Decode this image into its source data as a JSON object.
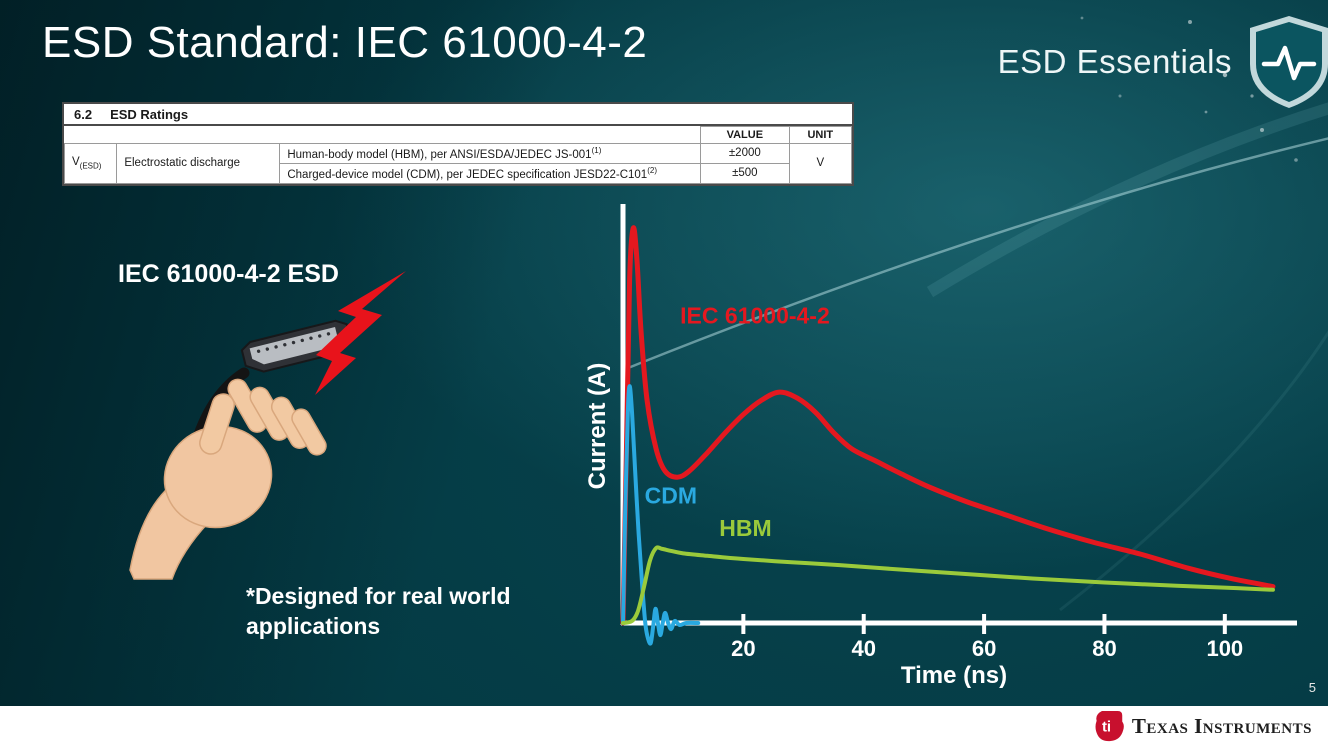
{
  "slide": {
    "title": "ESD Standard: IEC 61000-4-2",
    "brand": "ESD Essentials",
    "page_number": "5",
    "footer_logo_text": "Texas Instruments",
    "footer_logo_mark": "ti"
  },
  "table": {
    "section_number": "6.2",
    "section_title": "ESD Ratings",
    "headers": {
      "value": "VALUE",
      "unit": "UNIT"
    },
    "param": {
      "symbol": "V",
      "subscript": "(ESD)",
      "description": "Electrostatic discharge"
    },
    "rows": [
      {
        "description": "Human-body model (HBM), per ANSI/ESDA/JEDEC JS-001",
        "superscript": "(1)",
        "value": "±2000"
      },
      {
        "description": "Charged-device model (CDM), per JEDEC specification JESD22-C101",
        "superscript": "(2)",
        "value": "±500"
      }
    ],
    "unit": "V"
  },
  "illustration": {
    "label": "IEC 61000-4-2 ESD",
    "note": "*Designed for real world applications"
  },
  "chart_data": {
    "type": "line",
    "title": "",
    "xlabel": "Time (ns)",
    "ylabel": "Current (A)",
    "xlim": [
      0,
      110
    ],
    "ylim": [
      0,
      1
    ],
    "x_ticks": [
      20,
      40,
      60,
      80,
      100
    ],
    "grid": false,
    "legend_position": "inline-labels",
    "series": [
      {
        "name": "IEC 61000-4-2",
        "color": "#e4181f",
        "stroke_width": 5,
        "label": {
          "t": 9.5,
          "amp": 0.74
        },
        "points": [
          [
            0,
            0
          ],
          [
            0.6,
            0.45
          ],
          [
            1.1,
            0.85
          ],
          [
            1.7,
            0.975
          ],
          [
            2.3,
            0.9
          ],
          [
            3,
            0.72
          ],
          [
            4,
            0.55
          ],
          [
            5.5,
            0.43
          ],
          [
            7,
            0.375
          ],
          [
            9,
            0.36
          ],
          [
            11,
            0.375
          ],
          [
            14,
            0.42
          ],
          [
            17,
            0.47
          ],
          [
            20,
            0.515
          ],
          [
            23,
            0.55
          ],
          [
            26,
            0.57
          ],
          [
            29,
            0.555
          ],
          [
            32,
            0.52
          ],
          [
            35,
            0.47
          ],
          [
            38,
            0.43
          ],
          [
            42,
            0.4
          ],
          [
            46,
            0.37
          ],
          [
            51,
            0.335
          ],
          [
            57,
            0.3
          ],
          [
            63,
            0.27
          ],
          [
            70,
            0.235
          ],
          [
            78,
            0.2
          ],
          [
            86,
            0.17
          ],
          [
            94,
            0.135
          ],
          [
            101,
            0.11
          ],
          [
            108,
            0.09
          ]
        ]
      },
      {
        "name": "CDM",
        "color": "#2aa9e0",
        "stroke_width": 4,
        "label": {
          "t": 3.6,
          "amp": 0.295
        },
        "points": [
          [
            0,
            0
          ],
          [
            0.4,
            0.3
          ],
          [
            0.8,
            0.52
          ],
          [
            1.1,
            0.585
          ],
          [
            1.5,
            0.52
          ],
          [
            2,
            0.38
          ],
          [
            2.6,
            0.22
          ],
          [
            3.2,
            0.09
          ],
          [
            3.7,
            0
          ],
          [
            4.1,
            -0.035
          ],
          [
            4.6,
            -0.05
          ],
          [
            5,
            -0.01
          ],
          [
            5.4,
            0.035
          ],
          [
            5.8,
            0
          ],
          [
            6.2,
            -0.03
          ],
          [
            6.6,
            0
          ],
          [
            7,
            0.025
          ],
          [
            7.5,
            0
          ],
          [
            8,
            -0.015
          ],
          [
            8.6,
            0.005
          ],
          [
            9.4,
            -0.005
          ],
          [
            10.5,
            0
          ],
          [
            12.5,
            0
          ]
        ]
      },
      {
        "name": "HBM",
        "color": "#9aca3b",
        "stroke_width": 4,
        "label": {
          "t": 16,
          "amp": 0.215
        },
        "points": [
          [
            0,
            0
          ],
          [
            1.5,
            0.005
          ],
          [
            2.5,
            0.03
          ],
          [
            3.5,
            0.09
          ],
          [
            4.5,
            0.155
          ],
          [
            5.5,
            0.185
          ],
          [
            6.5,
            0.183
          ],
          [
            8,
            0.178
          ],
          [
            10,
            0.172
          ],
          [
            14,
            0.166
          ],
          [
            20,
            0.158
          ],
          [
            28,
            0.15
          ],
          [
            36,
            0.143
          ],
          [
            46,
            0.132
          ],
          [
            56,
            0.122
          ],
          [
            68,
            0.11
          ],
          [
            80,
            0.1
          ],
          [
            92,
            0.092
          ],
          [
            102,
            0.086
          ],
          [
            108,
            0.082
          ]
        ]
      }
    ]
  }
}
